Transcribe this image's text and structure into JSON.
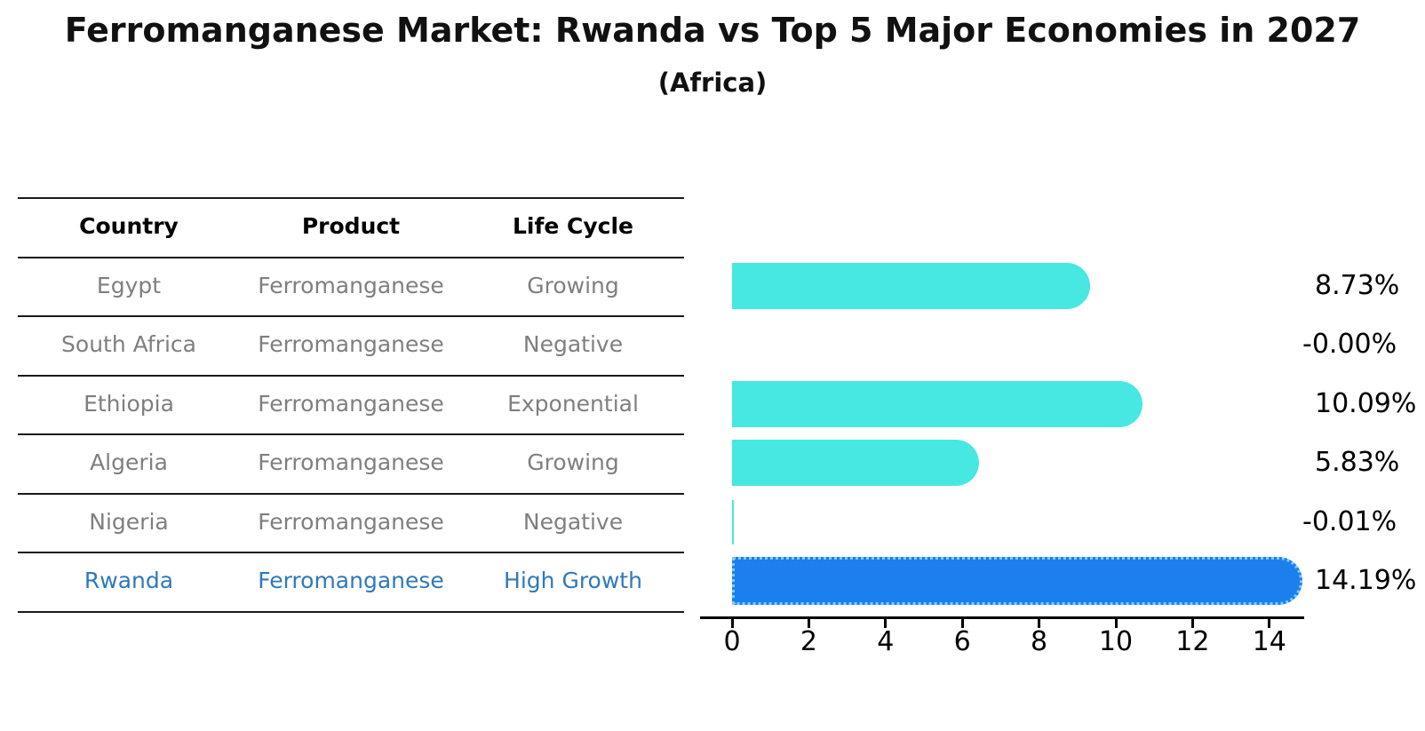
{
  "title": "Ferromanganese Market: Rwanda vs Top 5 Major Economies in 2027",
  "subtitle": "(Africa)",
  "table": {
    "columns": [
      "Country",
      "Product",
      "Life Cycle"
    ],
    "rows": [
      {
        "country": "Egypt",
        "product": "Ferromanganese",
        "life_cycle": "Growing",
        "highlighted": false
      },
      {
        "country": "South Africa",
        "product": "Ferromanganese",
        "life_cycle": "Negative",
        "highlighted": false
      },
      {
        "country": "Ethiopia",
        "product": "Ferromanganese",
        "life_cycle": "Exponential",
        "highlighted": false
      },
      {
        "country": "Algeria",
        "product": "Ferromanganese",
        "life_cycle": "Growing",
        "highlighted": false
      },
      {
        "country": "Nigeria",
        "product": "Ferromanganese",
        "life_cycle": "Negative",
        "highlighted": false
      },
      {
        "country": "Rwanda",
        "product": "Ferromanganese",
        "life_cycle": "High Growth",
        "highlighted": true
      }
    ]
  },
  "chart_data": {
    "type": "bar",
    "orientation": "horizontal",
    "categories": [
      "Egypt",
      "South Africa",
      "Ethiopia",
      "Algeria",
      "Nigeria",
      "Rwanda"
    ],
    "values": [
      8.73,
      -0.0,
      10.09,
      5.83,
      -0.01,
      14.19
    ],
    "value_labels": [
      "8.73%",
      "-0.00%",
      "10.09%",
      "5.83%",
      "-0.01%",
      "14.19%"
    ],
    "x_ticks": [
      0,
      2,
      4,
      6,
      8,
      10,
      12,
      14
    ],
    "xlim": [
      0,
      15.7
    ],
    "grid": false,
    "legend": "none",
    "colors": {
      "bar_default": "#46e8e1",
      "bar_highlight": "#1b80ee",
      "highlight_border": "#85c7f9",
      "highlight_text": "#2e79bd",
      "row_text": "#7f7f7f",
      "header_text": "#000000",
      "axis": "#000000"
    }
  }
}
